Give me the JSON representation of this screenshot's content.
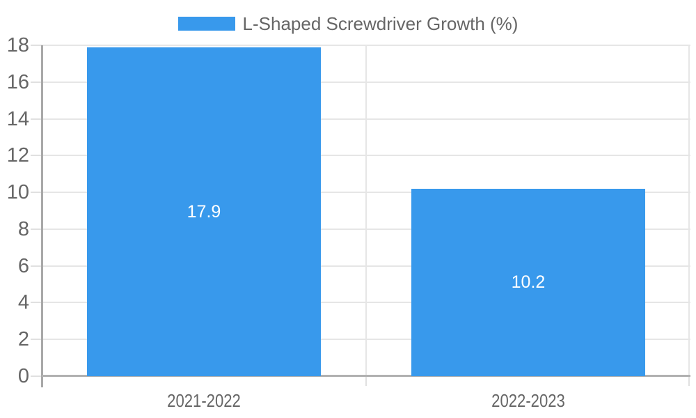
{
  "chart_data": {
    "type": "bar",
    "categories": [
      "2021-2022",
      "2022-2023"
    ],
    "values": [
      17.9,
      10.2
    ],
    "value_labels": [
      "17.9",
      "10.2"
    ],
    "legend": "L-Shaped Screwdriver Growth (%)",
    "legend_position": "top-center",
    "title": "",
    "xlabel": "",
    "ylabel": "",
    "ylim": [
      0,
      18
    ],
    "yticks": [
      0,
      2,
      4,
      6,
      8,
      10,
      12,
      14,
      16,
      18
    ],
    "grid": true,
    "colors": {
      "bar": "#3899ec",
      "gridline": "#e6e6e6",
      "tick": "#e0e0e0",
      "axis_y_line": "#a8a8a8",
      "axis_x_line": "#b1b1b1",
      "axis_text": "#666666",
      "legend_text": "#666666",
      "value_text": "#ffffff",
      "background": "#ffffff"
    }
  }
}
